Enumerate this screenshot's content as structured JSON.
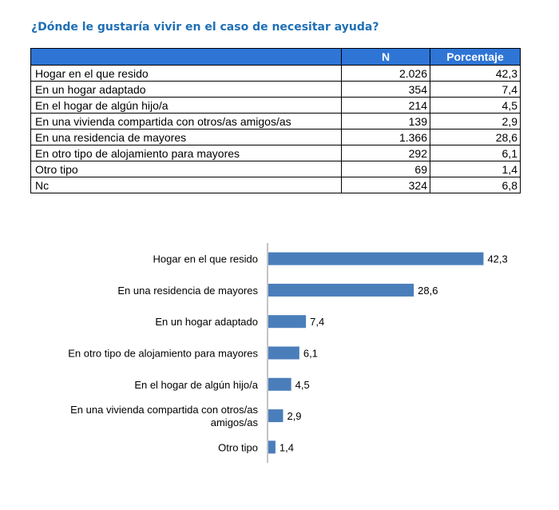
{
  "title": "¿Dónde le gustaría vivir en el caso de necesitar ayuda?",
  "table": {
    "headers": [
      "",
      "N",
      "Porcentaje"
    ],
    "rows": [
      {
        "label": "Hogar en el que resido",
        "n": "2.026",
        "pct": "42,3"
      },
      {
        "label": "En un hogar adaptado",
        "n": "354",
        "pct": "7,4"
      },
      {
        "label": "En el hogar de algún hijo/a",
        "n": "214",
        "pct": "4,5"
      },
      {
        "label": "En una vivienda compartida con otros/as amigos/as",
        "n": "139",
        "pct": "2,9"
      },
      {
        "label": "En una residencia de mayores",
        "n": "1.366",
        "pct": "28,6"
      },
      {
        "label": "En otro tipo de alojamiento para mayores",
        "n": "292",
        "pct": "6,1"
      },
      {
        "label": "Otro tipo",
        "n": "69",
        "pct": "1,4"
      },
      {
        "label": "Nc",
        "n": "324",
        "pct": "6,8"
      }
    ]
  },
  "chart_data": {
    "type": "bar",
    "orientation": "horizontal",
    "categories": [
      "Hogar en el que resido",
      "En una residencia de mayores",
      "En un hogar adaptado",
      "En otro tipo de alojamiento para mayores",
      "En el hogar de algún hijo/a",
      "En una vivienda compartida con otros/as amigos/as",
      "Otro tipo"
    ],
    "values": [
      42.3,
      28.6,
      7.4,
      6.1,
      4.5,
      2.9,
      1.4
    ],
    "value_labels": [
      "42,3",
      "28,6",
      "7,4",
      "6,1",
      "4,5",
      "2,9",
      "1,4"
    ],
    "xlim": [
      0,
      45
    ],
    "bar_color": "#4a7ebb",
    "grid": false,
    "legend": "none"
  }
}
